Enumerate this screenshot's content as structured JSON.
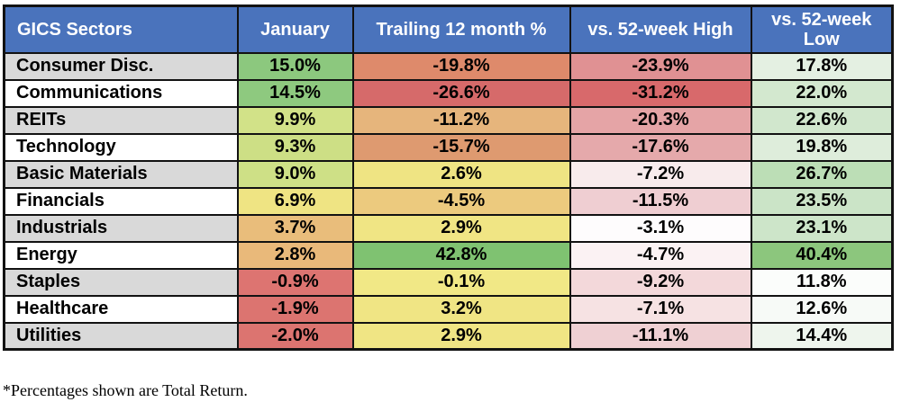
{
  "chart_data": {
    "type": "table",
    "columns": [
      {
        "label": "GICS Sectors"
      },
      {
        "label": "January"
      },
      {
        "label": "Trailing 12 month %"
      },
      {
        "label": "vs. 52-week High"
      },
      {
        "label": "vs. 52-week Low"
      }
    ],
    "rows": [
      {
        "sector": "Consumer Disc.",
        "sector_bg": "#D9D9D9",
        "values": [
          15.0,
          -19.8,
          -23.9,
          17.8
        ],
        "colors": [
          "#8CC87E",
          "#DE8A6B",
          "#E09193",
          "#E4F0E2"
        ]
      },
      {
        "sector": "Communications",
        "sector_bg": "#FFFFFF",
        "values": [
          14.5,
          -26.6,
          -31.2,
          22.0
        ],
        "colors": [
          "#8EC97F",
          "#D66A6A",
          "#D8696B",
          "#D3E8CF"
        ]
      },
      {
        "sector": "REITs",
        "sector_bg": "#D9D9D9",
        "values": [
          9.9,
          -11.2,
          -20.3,
          22.6
        ],
        "colors": [
          "#D2E288",
          "#E6B57C",
          "#E5A4A6",
          "#D1E7CD"
        ]
      },
      {
        "sector": "Technology",
        "sector_bg": "#FFFFFF",
        "values": [
          9.3,
          -15.7,
          -17.6,
          19.8
        ],
        "colors": [
          "#CDDF85",
          "#DE9A70",
          "#E5A9AB",
          "#DEEDDB"
        ]
      },
      {
        "sector": "Basic Materials",
        "sector_bg": "#D9D9D9",
        "values": [
          9.0,
          2.6,
          -7.2,
          26.7
        ],
        "colors": [
          "#CEE086",
          "#EFE483",
          "#F8EBEC",
          "#BCDEB6"
        ]
      },
      {
        "sector": "Financials",
        "sector_bg": "#FFFFFF",
        "values": [
          6.9,
          -4.5,
          -11.5,
          23.5
        ],
        "colors": [
          "#EFE483",
          "#ECCA7E",
          "#EFCED2",
          "#CBE4C7"
        ]
      },
      {
        "sector": "Industrials",
        "sector_bg": "#D9D9D9",
        "values": [
          3.7,
          2.9,
          -3.1,
          23.1
        ],
        "colors": [
          "#E9BD7B",
          "#F0E584",
          "#FEFCFD",
          "#CDE5C9"
        ]
      },
      {
        "sector": "Energy",
        "sector_bg": "#FFFFFF",
        "values": [
          2.8,
          42.8,
          -4.7,
          40.4
        ],
        "colors": [
          "#E9B97A",
          "#7FC271",
          "#FBF2F3",
          "#8CC67D"
        ]
      },
      {
        "sector": "Staples",
        "sector_bg": "#D9D9D9",
        "values": [
          -0.9,
          -0.1,
          -9.2,
          11.8
        ],
        "colors": [
          "#DD7471",
          "#F1E886",
          "#F3D8DA",
          "#FBFDFB"
        ]
      },
      {
        "sector": "Healthcare",
        "sector_bg": "#FFFFFF",
        "values": [
          -1.9,
          3.2,
          -7.1,
          12.6
        ],
        "colors": [
          "#DC7470",
          "#F0E584",
          "#F6E2E3",
          "#F7FAF7"
        ]
      },
      {
        "sector": "Utilities",
        "sector_bg": "#D9D9D9",
        "values": [
          -2.0,
          2.9,
          -11.1,
          14.4
        ],
        "colors": [
          "#DC7470",
          "#F0E584",
          "#EFD0D3",
          "#EEF5ED"
        ]
      }
    ],
    "value_format_suffix": "%",
    "footnote": "*Percentages shown are Total Return.",
    "layout": {
      "legend": false,
      "grid": true
    },
    "style": {
      "header_bg": "#4A73BC",
      "header_text_color": "#FFFFFF",
      "border_color": "#121212",
      "alt_row_gray": "#D9D9D9"
    }
  }
}
